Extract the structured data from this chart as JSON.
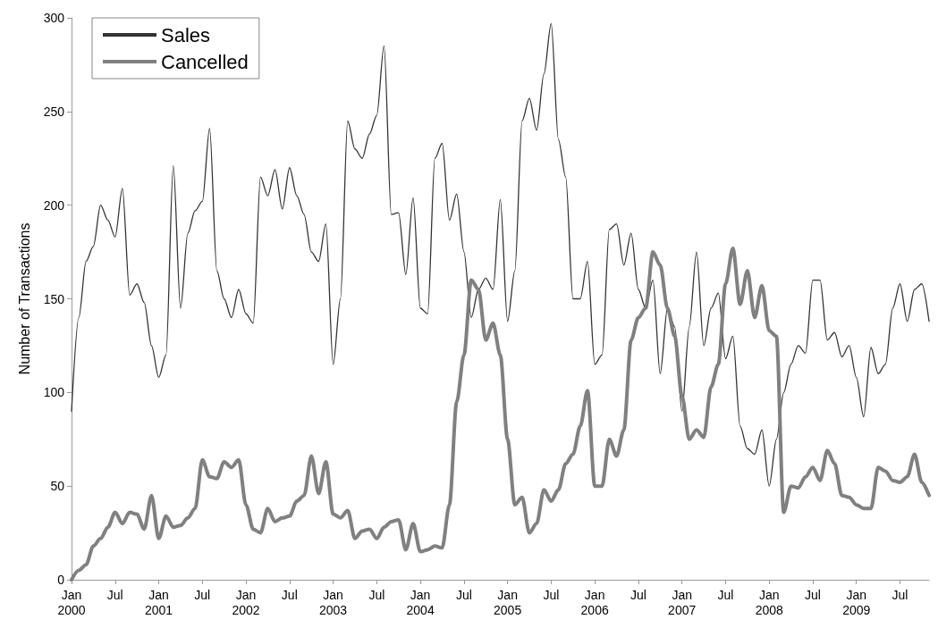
{
  "chart_data": {
    "type": "line",
    "ylabel": "Number of Transactions",
    "ylim": [
      0,
      300
    ],
    "yticks": [
      0,
      50,
      100,
      150,
      200,
      250,
      300
    ],
    "grid": false,
    "legend": "top left",
    "marker": "none",
    "line_style": "solid",
    "categories": [
      "Jan\n2000",
      null,
      null,
      null,
      null,
      null,
      "Jul",
      null,
      null,
      null,
      null,
      null,
      "Jan\n2001",
      null,
      null,
      null,
      null,
      null,
      "Jul",
      null,
      null,
      null,
      null,
      null,
      "Jan\n2002",
      null,
      null,
      null,
      null,
      null,
      "Jul",
      null,
      null,
      null,
      null,
      null,
      "Jan\n2003",
      null,
      null,
      null,
      null,
      null,
      "Jul",
      null,
      null,
      null,
      null,
      null,
      "Jan\n2004",
      null,
      null,
      null,
      null,
      null,
      "Jul",
      null,
      null,
      null,
      null,
      null,
      "Jan\n2005",
      null,
      null,
      null,
      null,
      null,
      "Jul",
      null,
      null,
      null,
      null,
      null,
      "Jan\n2006",
      null,
      null,
      null,
      null,
      null,
      "Jul",
      null,
      null,
      null,
      null,
      null,
      "Jan\n2007",
      null,
      null,
      null,
      null,
      null,
      "Jul",
      null,
      null,
      null,
      null,
      null,
      "Jan\n2008",
      null,
      null,
      null,
      null,
      null,
      "Jul",
      null,
      null,
      null,
      null,
      null,
      "Jan\n2009",
      null,
      null,
      null,
      null,
      null,
      "Jul",
      null,
      null,
      null,
      null
    ],
    "series": [
      {
        "name": "Sales",
        "color": "#333333",
        "values": [
          90,
          140,
          170,
          178,
          200,
          192,
          183,
          209,
          152,
          158,
          148,
          125,
          108,
          120,
          221,
          145,
          185,
          197,
          202,
          241,
          165,
          150,
          140,
          155,
          142,
          137,
          215,
          205,
          219,
          198,
          220,
          205,
          195,
          175,
          170,
          190,
          115,
          150,
          245,
          230,
          225,
          238,
          248,
          285,
          195,
          196,
          163,
          204,
          145,
          142,
          225,
          233,
          192,
          206,
          175,
          140,
          155,
          161,
          155,
          203,
          138,
          165,
          245,
          257,
          240,
          270,
          297,
          235,
          215,
          150,
          150,
          170,
          115,
          120,
          187,
          190,
          168,
          185,
          155,
          145,
          160,
          110,
          145,
          135,
          90,
          135,
          175,
          125,
          145,
          153,
          118,
          130,
          82,
          70,
          67,
          80,
          50,
          75,
          100,
          115,
          125,
          121,
          160,
          160,
          128,
          132,
          119,
          125,
          108,
          87,
          124,
          110,
          115,
          145,
          158,
          138,
          155,
          158,
          138
        ]
      },
      {
        "name": "Cancelled",
        "color": "#808080",
        "values": [
          0,
          5,
          8,
          18,
          22,
          28,
          36,
          30,
          36,
          35,
          27,
          45,
          22,
          34,
          28,
          29,
          33,
          38,
          64,
          55,
          54,
          63,
          60,
          64,
          40,
          27,
          25,
          38,
          31,
          33,
          34,
          42,
          45,
          66,
          46,
          63,
          35,
          33,
          37,
          22,
          26,
          27,
          22,
          28,
          31,
          32,
          16,
          30,
          15,
          16,
          18,
          17,
          40,
          95,
          120,
          160,
          155,
          128,
          137,
          120,
          75,
          40,
          44,
          25,
          30,
          48,
          42,
          48,
          62,
          67,
          82,
          101,
          50,
          50,
          75,
          66,
          80,
          128,
          140,
          145,
          175,
          168,
          145,
          130,
          98,
          75,
          80,
          76,
          103,
          115,
          158,
          177,
          147,
          165,
          140,
          157,
          133,
          130,
          36,
          50,
          49,
          55,
          60,
          53,
          69,
          62,
          45,
          44,
          40,
          38,
          38,
          60,
          58,
          53,
          52,
          55,
          67,
          52,
          45
        ]
      }
    ]
  }
}
